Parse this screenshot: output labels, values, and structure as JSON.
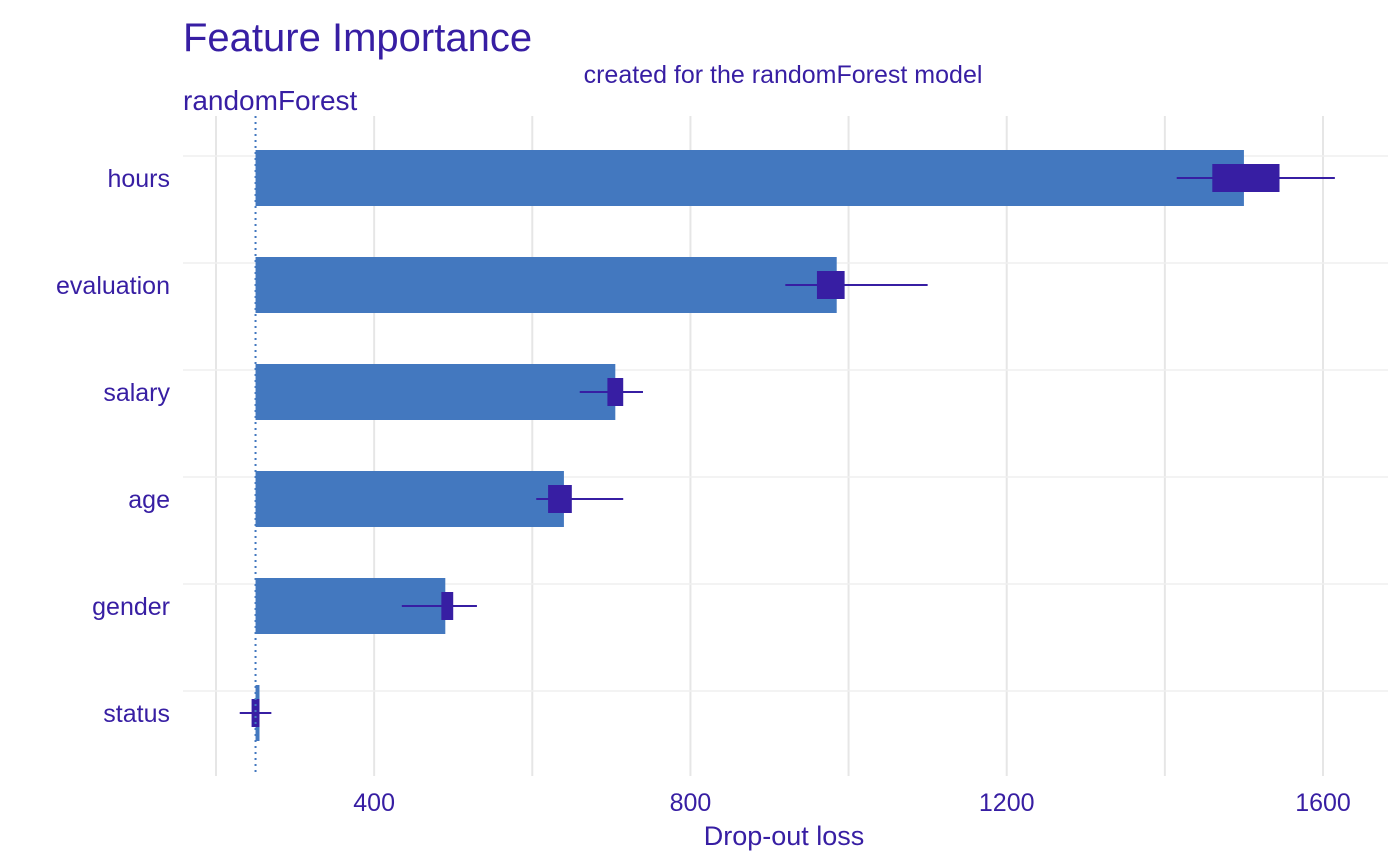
{
  "chart_data": {
    "type": "bar",
    "title": "Feature Importance",
    "subtitle": "created for the randomForest model",
    "panel_label": "randomForest",
    "xlabel": "Drop-out loss",
    "ylabel": "",
    "xlim": [
      180,
      1640
    ],
    "x_ticks": [
      400,
      800,
      1200,
      1600
    ],
    "x_tick_labels": [
      "400",
      "800",
      "1200",
      "1600"
    ],
    "baseline": 250,
    "categories": [
      "hours",
      "evaluation",
      "salary",
      "age",
      "gender",
      "status"
    ],
    "values": [
      1500,
      985,
      705,
      640,
      490,
      255
    ],
    "boxplot": [
      {
        "min": 1415,
        "q1": 1460,
        "q3": 1545,
        "max": 1615
      },
      {
        "min": 920,
        "q1": 960,
        "q3": 995,
        "max": 1100
      },
      {
        "min": 660,
        "q1": 695,
        "q3": 715,
        "max": 740
      },
      {
        "min": 605,
        "q1": 620,
        "q3": 650,
        "max": 715
      },
      {
        "min": 435,
        "q1": 485,
        "q3": 500,
        "max": 530
      },
      {
        "min": 230,
        "q1": 245,
        "q3": 255,
        "max": 270
      }
    ],
    "grid": true,
    "legend": "none",
    "colors": {
      "bar": "#4378bf",
      "box": "#371ea3",
      "text": "#371ea3",
      "grid": "#e6e6e6",
      "baseline": "#4378bf"
    }
  }
}
